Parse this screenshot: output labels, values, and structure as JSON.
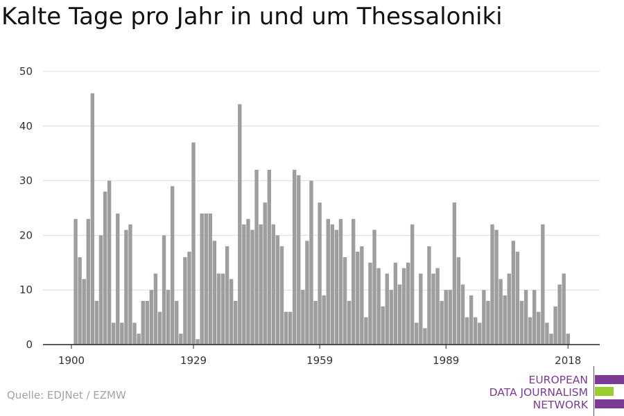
{
  "title": "Kalte Tage pro Jahr in und um Thessaloniki",
  "source": "Quelle: EDJNet / EZMW",
  "logo": {
    "lines": [
      "EUROPEAN",
      "DATA JOURNALISM",
      "NETWORK"
    ],
    "colors": {
      "purple": "#7b3b93",
      "green": "#9acd32"
    }
  },
  "chart_data": {
    "type": "bar",
    "title": "Kalte Tage pro Jahr in und um Thessaloniki",
    "xlabel": "",
    "ylabel": "",
    "ylim": [
      0,
      50
    ],
    "yticks": [
      0,
      10,
      20,
      30,
      40,
      50
    ],
    "xticks": [
      1900,
      1929,
      1959,
      1989,
      2018
    ],
    "grid": true,
    "bar_color": "#9e9e9e",
    "x": [
      1901,
      1902,
      1903,
      1904,
      1905,
      1906,
      1907,
      1908,
      1909,
      1910,
      1911,
      1912,
      1913,
      1914,
      1915,
      1916,
      1917,
      1918,
      1919,
      1920,
      1921,
      1922,
      1923,
      1924,
      1925,
      1926,
      1927,
      1928,
      1929,
      1930,
      1931,
      1932,
      1933,
      1934,
      1935,
      1936,
      1937,
      1938,
      1939,
      1940,
      1941,
      1942,
      1943,
      1944,
      1945,
      1946,
      1947,
      1948,
      1949,
      1950,
      1951,
      1952,
      1953,
      1954,
      1955,
      1956,
      1957,
      1958,
      1959,
      1960,
      1961,
      1962,
      1963,
      1964,
      1965,
      1966,
      1967,
      1968,
      1969,
      1970,
      1971,
      1972,
      1973,
      1974,
      1975,
      1976,
      1977,
      1978,
      1979,
      1980,
      1981,
      1982,
      1983,
      1984,
      1985,
      1986,
      1987,
      1988,
      1989,
      1990,
      1991,
      1992,
      1993,
      1994,
      1995,
      1996,
      1997,
      1998,
      1999,
      2000,
      2001,
      2002,
      2003,
      2004,
      2005,
      2006,
      2007,
      2008,
      2009,
      2010,
      2011,
      2012,
      2013,
      2014,
      2015,
      2016,
      2017,
      2018
    ],
    "values": [
      23,
      16,
      12,
      23,
      46,
      8,
      20,
      28,
      30,
      4,
      24,
      4,
      21,
      22,
      4,
      2,
      8,
      8,
      10,
      13,
      6,
      20,
      10,
      29,
      8,
      2,
      16,
      17,
      37,
      1,
      24,
      24,
      24,
      19,
      13,
      13,
      18,
      12,
      8,
      44,
      22,
      23,
      21,
      32,
      22,
      26,
      32,
      22,
      20,
      18,
      6,
      6,
      32,
      31,
      10,
      19,
      30,
      8,
      26,
      9,
      23,
      22,
      21,
      23,
      16,
      8,
      23,
      17,
      18,
      5,
      15,
      21,
      14,
      7,
      13,
      10,
      15,
      11,
      14,
      15,
      22,
      4,
      13,
      3,
      18,
      13,
      14,
      8,
      10,
      10,
      26,
      16,
      11,
      5,
      9,
      5,
      4,
      10,
      8,
      22,
      21,
      12,
      9,
      13,
      19,
      17,
      8,
      10,
      5,
      10,
      6,
      22,
      4,
      2,
      7,
      11,
      13,
      2
    ]
  }
}
